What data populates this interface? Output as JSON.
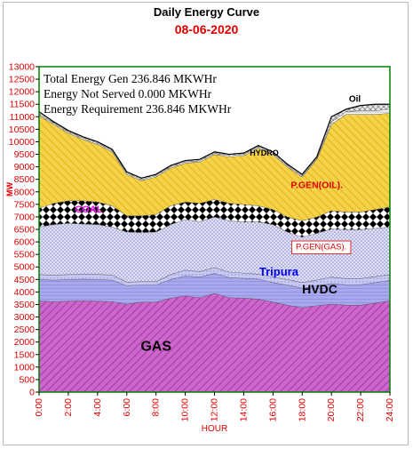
{
  "chart_data": {
    "type": "area",
    "title": "Daily Energy Curve",
    "subtitle": "08-06-2020",
    "xlabel": "HOUR",
    "ylabel": "MW",
    "ylim": [
      0,
      13000
    ],
    "xlim": [
      0,
      24
    ],
    "y_ticks": [
      0,
      500,
      1000,
      1500,
      2000,
      2500,
      3000,
      3500,
      4000,
      4500,
      5000,
      5500,
      6000,
      6500,
      7000,
      7500,
      8000,
      8500,
      9000,
      9500,
      10000,
      10500,
      11000,
      11500,
      12000,
      12500,
      13000
    ],
    "x_ticks": [
      "0:00",
      "2:00",
      "4:00",
      "6:00",
      "8:00",
      "10:00",
      "12:00",
      "14:00",
      "16:00",
      "18:00",
      "20:00",
      "22:00",
      "24:00"
    ],
    "x": [
      0,
      1,
      2,
      3,
      4,
      5,
      6,
      7,
      8,
      9,
      10,
      11,
      12,
      13,
      14,
      15,
      16,
      17,
      18,
      19,
      20,
      21,
      22,
      23,
      24
    ],
    "stacked_cumulative": true,
    "series": [
      {
        "name": "GAS",
        "top": [
          3650,
          3620,
          3640,
          3660,
          3640,
          3620,
          3520,
          3600,
          3600,
          3760,
          3850,
          3780,
          3950,
          3780,
          3760,
          3720,
          3600,
          3480,
          3380,
          3460,
          3520,
          3480,
          3480,
          3560,
          3660
        ],
        "color": "#c060c0"
      },
      {
        "name": "HVDC",
        "top": [
          4500,
          4480,
          4500,
          4520,
          4500,
          4480,
          4260,
          4290,
          4290,
          4500,
          4650,
          4600,
          4750,
          4580,
          4550,
          4520,
          4380,
          4280,
          4160,
          4250,
          4340,
          4300,
          4300,
          4380,
          4470
        ],
        "color": "#9090e0"
      },
      {
        "name": "Tripura",
        "top": [
          4700,
          4680,
          4700,
          4730,
          4710,
          4680,
          4400,
          4420,
          4420,
          4700,
          4880,
          4820,
          4980,
          4800,
          4760,
          4720,
          4600,
          4500,
          4380,
          4480,
          4600,
          4540,
          4540,
          4620,
          4700
        ],
        "color": "#b0b0f0"
      },
      {
        "name": "P.GEN(GAS).",
        "top": [
          6600,
          6700,
          6750,
          6720,
          6700,
          6600,
          6400,
          6380,
          6400,
          6700,
          6900,
          6820,
          7000,
          6850,
          6800,
          6800,
          6700,
          6400,
          6200,
          6350,
          6520,
          6500,
          6500,
          6550,
          6600
        ],
        "color": "#d0d0f0"
      },
      {
        "name": "COAL",
        "top": [
          7350,
          7550,
          7650,
          7650,
          7600,
          7450,
          7050,
          7050,
          7100,
          7450,
          7600,
          7550,
          7700,
          7550,
          7500,
          7450,
          7300,
          7000,
          6850,
          7000,
          7250,
          7200,
          7200,
          7300,
          7400
        ],
        "color": "#000000"
      },
      {
        "name": "P.GEN(OIL).",
        "top": [
          11050,
          10700,
          10350,
          10100,
          9900,
          9600,
          8700,
          8450,
          8600,
          8950,
          9150,
          9200,
          9500,
          9400,
          9450,
          9750,
          9500,
          9000,
          8600,
          9300,
          10700,
          11100,
          11100,
          11100,
          11150
        ],
        "color": "#f0c020"
      },
      {
        "name": "HYDRO",
        "top": [
          11100,
          10750,
          10400,
          10150,
          9950,
          9650,
          8750,
          8500,
          8650,
          9000,
          9200,
          9250,
          9550,
          9450,
          9500,
          9800,
          9550,
          9050,
          8650,
          9350,
          10800,
          11200,
          11250,
          11250,
          11300
        ],
        "color": "#ffffff"
      },
      {
        "name": "OIL",
        "top": [
          11200,
          10800,
          10450,
          10200,
          10000,
          9700,
          8800,
          8550,
          8700,
          9050,
          9250,
          9300,
          9600,
          9500,
          9550,
          9850,
          9600,
          9100,
          8700,
          9400,
          11000,
          11300,
          11450,
          11500,
          11500
        ],
        "color": "#d8d8d8"
      }
    ],
    "labels": [
      {
        "text": "GAS",
        "x": 8,
        "y": 1650
      },
      {
        "text": "HVDC",
        "x": 19.2,
        "y": 3950
      },
      {
        "text": "Tripura",
        "x": 16.4,
        "y": 4650
      },
      {
        "text": "P.GEN(GAS).",
        "x": 19.3,
        "y": 5700
      },
      {
        "text": "COAL",
        "x": 3.4,
        "y": 7180
      },
      {
        "text": "P.GEN(OIL).",
        "x": 19.0,
        "y": 8150
      },
      {
        "text": "HYDRO",
        "x": 15.4,
        "y": 9450
      },
      {
        "text": "Oil",
        "x": 21.6,
        "y": 11600
      }
    ],
    "annotation_lines": [
      "Total Energy Gen 236.846 MKWHr",
      "Energy Not Served  0.000 MKWHr",
      "Energy Requirement      236.846 MKWHr"
    ],
    "grid": false,
    "legend": "none"
  }
}
